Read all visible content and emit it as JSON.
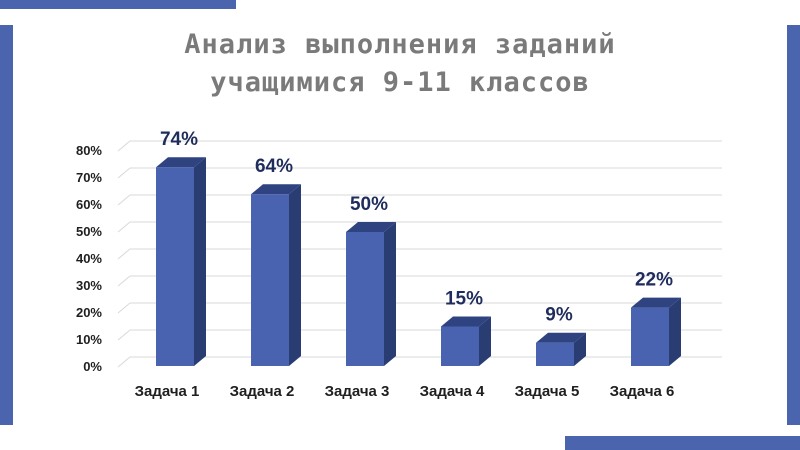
{
  "colors": {
    "accent": "#4a65ad",
    "bar_front": "#4a63b0",
    "bar_top": "#2e4380",
    "bar_side": "#2a3d73",
    "data_label": "#1f2d5c",
    "title": "#7a7a7a",
    "grid": "#d9d9d9"
  },
  "title_lines": [
    "Анализ выполнения заданий",
    "учащимися 9-11 классов"
  ],
  "chart_data": {
    "type": "bar",
    "categories": [
      "Задача 1",
      "Задача 2",
      "Задача 3",
      "Задача 4",
      "Задача 5",
      "Задача 6"
    ],
    "values": [
      74,
      64,
      50,
      15,
      9,
      22
    ],
    "data_labels": [
      "74%",
      "64%",
      "50%",
      "15%",
      "9%",
      "22%"
    ],
    "ylim": [
      0,
      80
    ],
    "yticks": [
      0,
      10,
      20,
      30,
      40,
      50,
      60,
      70,
      80
    ],
    "ytick_labels": [
      "0%",
      "10%",
      "20%",
      "30%",
      "40%",
      "50%",
      "60%",
      "70%",
      "80%"
    ],
    "grid": true,
    "style": "3d-column"
  }
}
